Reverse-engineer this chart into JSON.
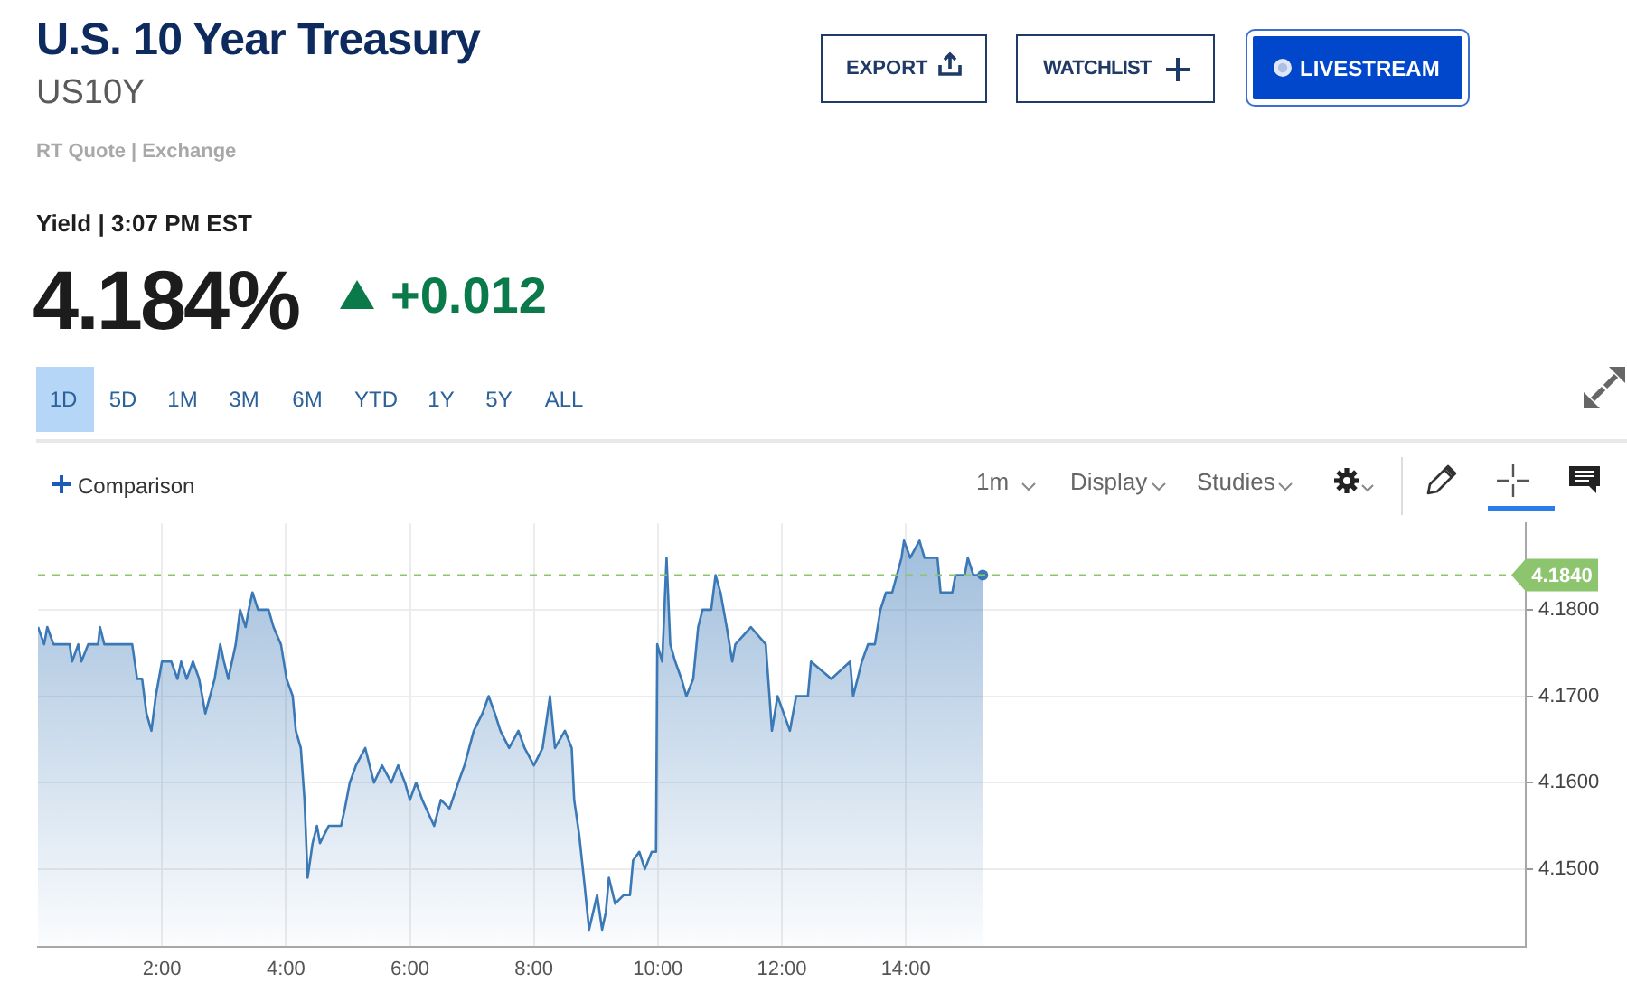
{
  "chart_data": {
    "type": "area",
    "title": "U.S. 10 Year Treasury",
    "subtitle": "US10Y",
    "annotations": [
      "RT Quote | Exchange",
      "Yield | 3:07 PM EST",
      "4.184%",
      "+0.012",
      "1D",
      "5D",
      "1M",
      "3M",
      "6M",
      "YTD",
      "1Y",
      "5Y",
      "ALL",
      "EXPORT",
      "WATCHLIST",
      "LIVESTREAM",
      "Comparison",
      "1m",
      "Display",
      "Studies"
    ],
    "x": [
      0,
      0.1,
      0.15,
      0.25,
      0.32,
      0.51,
      0.55,
      0.65,
      0.7,
      0.81,
      0.97,
      1,
      1.07,
      1.52,
      1.6,
      1.68,
      1.75,
      1.83,
      1.9,
      2,
      2.15,
      2.25,
      2.31,
      2.4,
      2.5,
      2.6,
      2.7,
      2.85,
      2.94,
      3,
      3.07,
      3.19,
      3.26,
      3.35,
      3.4,
      3.46,
      3.55,
      3.72,
      3.8,
      3.92,
      4.01,
      4.11,
      4.16,
      4.24,
      4.3,
      4.35,
      4.43,
      4.5,
      4.55,
      4.69,
      4.89,
      4.95,
      5.03,
      5.13,
      5.28,
      5.35,
      5.42,
      5.55,
      5.7,
      5.81,
      5.92,
      6,
      6.1,
      6.2,
      6.39,
      6.5,
      6.64,
      6.78,
      6.88,
      7.03,
      7.17,
      7.27,
      7.37,
      7.46,
      7.6,
      7.75,
      7.85,
      8,
      8.14,
      8.26,
      8.34,
      8.5,
      8.61,
      8.65,
      8.73,
      8.82,
      8.89,
      9.02,
      9.1,
      9.16,
      9.21,
      9.31,
      9.45,
      9.55,
      9.6,
      9.7,
      9.79,
      9.9,
      9.97,
      9.99,
      10.07,
      10.14,
      10.2,
      10.28,
      10.38,
      10.46,
      10.57,
      10.65,
      10.72,
      10.86,
      10.93,
      11.01,
      11.11,
      11.2,
      11.25,
      11.5,
      11.74,
      11.84,
      11.93,
      12.03,
      12.13,
      12.23,
      12.42,
      12.47,
      12.8,
      13.1,
      13.15,
      13.29,
      13.39,
      13.5,
      13.59,
      13.68,
      13.78,
      13.93,
      13.97,
      14.07,
      14.22,
      14.3,
      14.51,
      14.56,
      14.75,
      14.8,
      14.95,
      15,
      15.09,
      15.24
    ],
    "values": [
      4.178,
      4.176,
      4.178,
      4.176,
      4.176,
      4.176,
      4.174,
      4.176,
      4.174,
      4.176,
      4.176,
      4.178,
      4.176,
      4.176,
      4.172,
      4.172,
      4.168,
      4.166,
      4.17,
      4.174,
      4.174,
      4.172,
      4.174,
      4.172,
      4.174,
      4.172,
      4.168,
      4.172,
      4.176,
      4.174,
      4.172,
      4.176,
      4.18,
      4.178,
      4.18,
      4.182,
      4.18,
      4.18,
      4.178,
      4.176,
      4.172,
      4.17,
      4.166,
      4.164,
      4.158,
      4.149,
      4.153,
      4.155,
      4.153,
      4.155,
      4.155,
      4.157,
      4.16,
      4.162,
      4.164,
      4.162,
      4.16,
      4.162,
      4.16,
      4.162,
      4.16,
      4.158,
      4.16,
      4.158,
      4.155,
      4.158,
      4.157,
      4.16,
      4.162,
      4.166,
      4.168,
      4.17,
      4.168,
      4.166,
      4.164,
      4.166,
      4.164,
      4.162,
      4.164,
      4.17,
      4.164,
      4.166,
      4.164,
      4.158,
      4.154,
      4.148,
      4.143,
      4.147,
      4.143,
      4.145,
      4.149,
      4.146,
      4.147,
      4.147,
      4.151,
      4.152,
      4.15,
      4.152,
      4.152,
      4.176,
      4.174,
      4.186,
      4.176,
      4.174,
      4.172,
      4.17,
      4.172,
      4.178,
      4.18,
      4.18,
      4.184,
      4.182,
      4.178,
      4.174,
      4.176,
      4.178,
      4.176,
      4.166,
      4.17,
      4.168,
      4.166,
      4.17,
      4.17,
      4.174,
      4.172,
      4.174,
      4.17,
      4.174,
      4.176,
      4.176,
      4.18,
      4.182,
      4.182,
      4.186,
      4.188,
      4.186,
      4.188,
      4.186,
      4.186,
      4.182,
      4.182,
      4.184,
      4.184,
      4.186,
      4.184,
      4.184
    ],
    "color": "#3b78b6",
    "xlim": [
      0,
      24
    ],
    "xticks": [
      {
        "value": 2,
        "label": "2:00"
      },
      {
        "value": 4,
        "label": "4:00"
      },
      {
        "value": 6,
        "label": "6:00"
      },
      {
        "value": 8,
        "label": "8:00"
      },
      {
        "value": 10,
        "label": "10:00"
      },
      {
        "value": 12,
        "label": "12:00"
      },
      {
        "value": 14,
        "label": "14:00"
      }
    ],
    "ylim": [
      4.141,
      4.19
    ],
    "yticks": [
      {
        "value": 4.15,
        "label": "4.1500"
      },
      {
        "value": 4.16,
        "label": "4.1600"
      },
      {
        "value": 4.17,
        "label": "4.1700"
      },
      {
        "value": 4.18,
        "label": "4.1800"
      }
    ],
    "ref_lines": [
      {
        "axis": "y",
        "value": 4.184,
        "label": "4.1840",
        "color": "#8dc46e",
        "line_style": "dashed"
      }
    ],
    "grid": true,
    "legend": false
  }
}
